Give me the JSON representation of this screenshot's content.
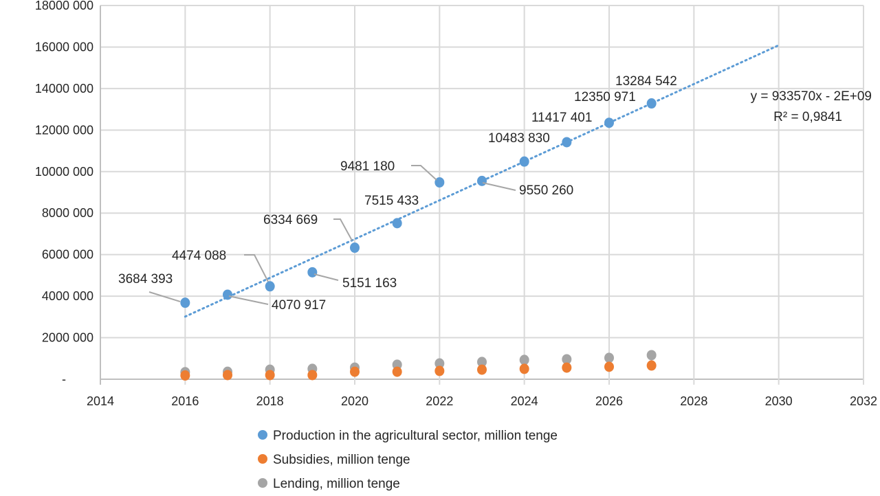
{
  "chart_data": {
    "type": "scatter",
    "title": "",
    "xlabel": "",
    "ylabel": "",
    "xlim": [
      2014,
      2032
    ],
    "ylim": [
      0,
      18000000
    ],
    "x_ticks": [
      "2014",
      "2016",
      "2018",
      "2020",
      "2022",
      "2024",
      "2026",
      "2028",
      "2030",
      "2032"
    ],
    "y_ticks": [
      "-",
      "2000 000",
      "4000 000",
      "6000 000",
      "8000 000",
      "10000 000",
      "12000 000",
      "14000 000",
      "16000 000",
      "18000 000"
    ],
    "grid": true,
    "legend_position": "bottom",
    "x": [
      2016,
      2017,
      2018,
      2019,
      2020,
      2021,
      2022,
      2023,
      2024,
      2025,
      2026,
      2027
    ],
    "series": [
      {
        "name": "Production in the agricultural sector, million tenge",
        "color": "#5B9BD5",
        "values": [
          3684393,
          4070917,
          4474088,
          5151163,
          6334669,
          7515433,
          9481180,
          9550260,
          10483830,
          11417401,
          12350971,
          13284542
        ],
        "data_labels": [
          "3684 393",
          "4070 917",
          "4474 088",
          "5151 163",
          "6334 669",
          "7515 433",
          "9481 180",
          "9550 260",
          "10483 830",
          "11417 401",
          "12350 971",
          "13284 542"
        ]
      },
      {
        "name": "Subsidies, million tenge",
        "color": "#ED7D31",
        "values": [
          180000,
          200000,
          200000,
          200000,
          360000,
          360000,
          400000,
          460000,
          500000,
          560000,
          600000,
          660000
        ]
      },
      {
        "name": "Lending, million tenge",
        "color": "#A5A5A5",
        "values": [
          340000,
          360000,
          460000,
          500000,
          560000,
          700000,
          760000,
          830000,
          930000,
          960000,
          1030000,
          1160000
        ]
      }
    ],
    "trendline": {
      "series": "Production in the agricultural sector, million tenge",
      "type": "linear",
      "style": "dotted",
      "color": "#5B9BD5",
      "x_range": [
        2016,
        2030
      ],
      "equation": "y = 933570x - 2E+09",
      "r_squared": "R² = 0,9841"
    }
  }
}
